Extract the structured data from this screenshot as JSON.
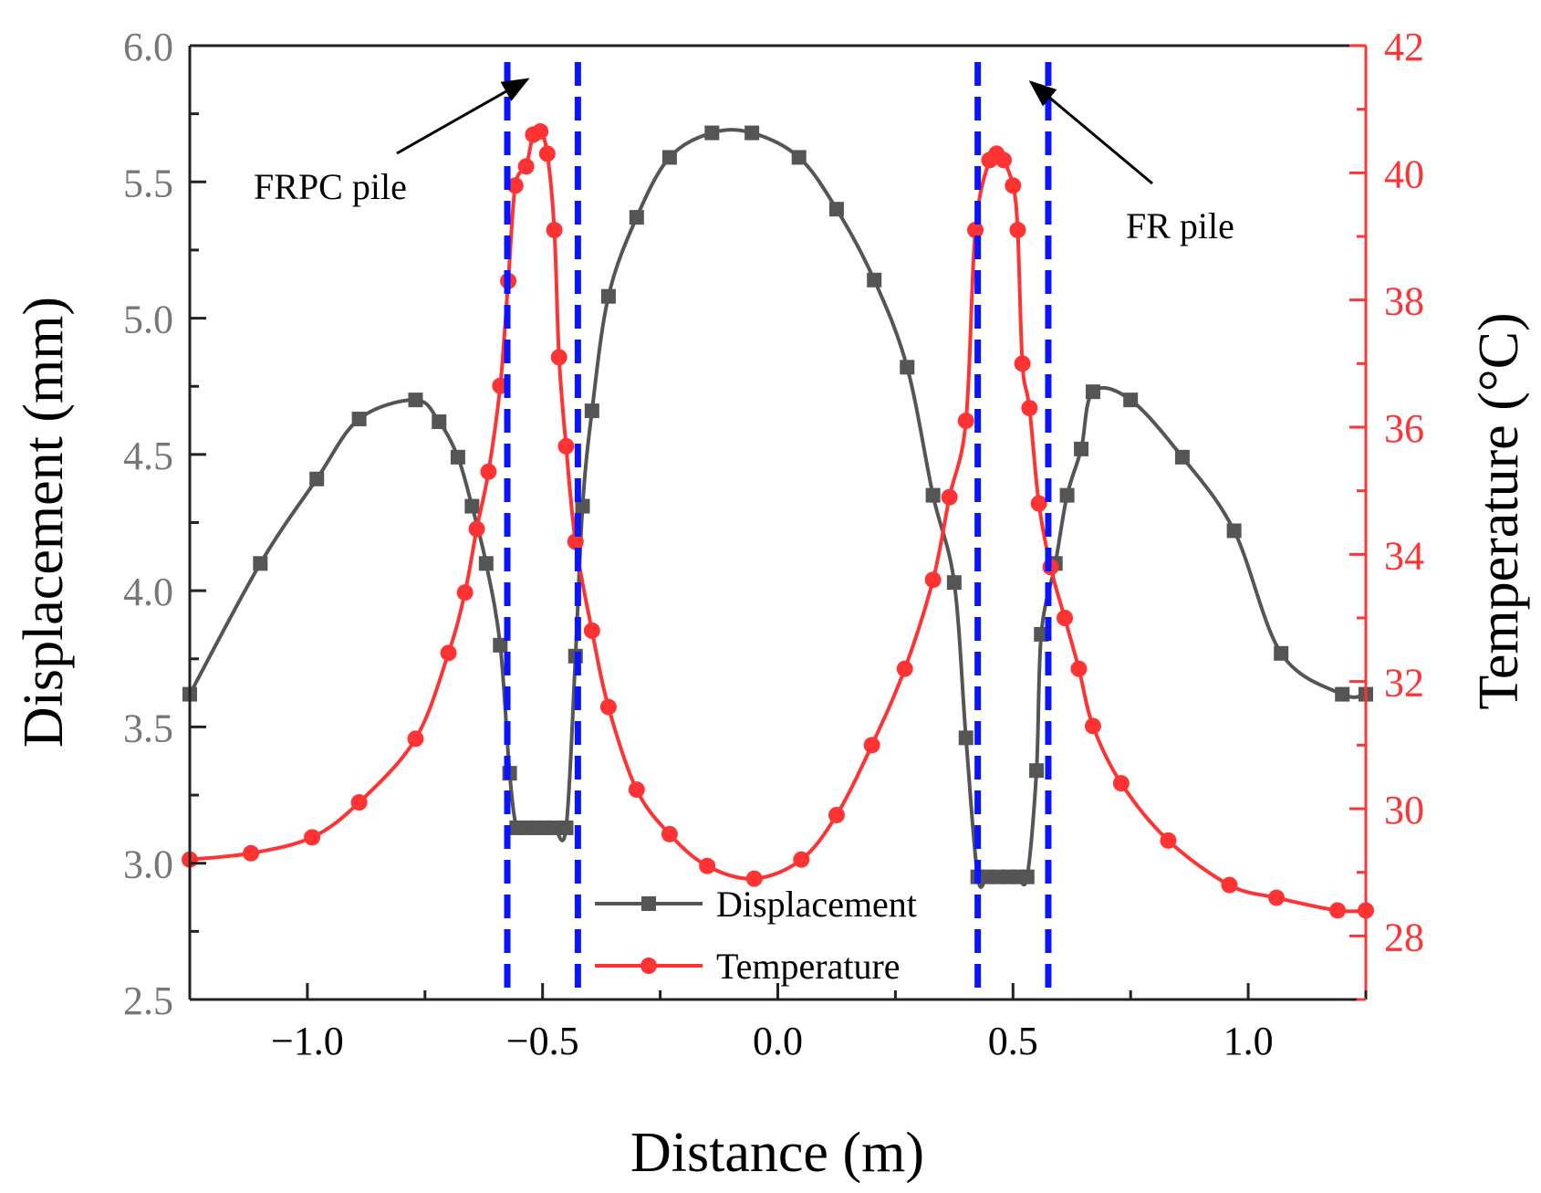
{
  "chart_data": {
    "type": "line",
    "xlabel": "Distance (m)",
    "ylabel": "Displacement (mm)",
    "ylabel_right": "Temperature (°C)",
    "xlim": [
      -1.25,
      1.25
    ],
    "ylim": [
      2.5,
      6.0
    ],
    "ylim_right": [
      27,
      42
    ],
    "x_ticks": [
      "−1.0",
      "−0.5",
      "0.0",
      "0.5",
      "1.0"
    ],
    "x_tick_values": [
      -1.0,
      -0.5,
      0.0,
      0.5,
      1.0
    ],
    "y_ticks": [
      "2.5",
      "3.0",
      "3.5",
      "4.0",
      "4.5",
      "5.0",
      "5.5",
      "6.0"
    ],
    "y_tick_values": [
      2.5,
      3.0,
      3.5,
      4.0,
      4.5,
      5.0,
      5.5,
      6.0
    ],
    "y_right_ticks": [
      "28",
      "30",
      "32",
      "34",
      "36",
      "38",
      "40",
      "42"
    ],
    "y_right_tick_values": [
      28,
      30,
      32,
      34,
      36,
      38,
      40,
      42
    ],
    "legend_position": "bottom-center",
    "colors": {
      "displacement": "#555555",
      "temperature": "#ff3333",
      "pile_lines": "#0a14ff",
      "left_axis": "#777777",
      "right_axis": "#ff3333"
    },
    "series": [
      {
        "name": "Displacement",
        "axis": "left",
        "marker": "square",
        "x": [
          -1.25,
          -1.1,
          -0.98,
          -0.89,
          -0.77,
          -0.72,
          -0.68,
          -0.65,
          -0.62,
          -0.59,
          -0.57,
          -0.555,
          -0.535,
          -0.515,
          -0.495,
          -0.475,
          -0.45,
          -0.43,
          -0.415,
          -0.395,
          -0.36,
          -0.3,
          -0.23,
          -0.14,
          -0.055,
          0.045,
          0.125,
          0.205,
          0.275,
          0.33,
          0.375,
          0.4,
          0.425,
          0.445,
          0.47,
          0.49,
          0.51,
          0.53,
          0.55,
          0.56,
          0.59,
          0.615,
          0.645,
          0.67,
          0.75,
          0.86,
          0.97,
          1.07,
          1.2,
          1.25
        ],
        "y": [
          3.62,
          4.1,
          4.41,
          4.63,
          4.7,
          4.62,
          4.49,
          4.31,
          4.1,
          3.8,
          3.33,
          3.13,
          3.13,
          3.13,
          3.13,
          3.13,
          3.13,
          3.76,
          4.31,
          4.66,
          5.08,
          5.37,
          5.59,
          5.68,
          5.68,
          5.59,
          5.4,
          5.14,
          4.82,
          4.35,
          4.03,
          3.46,
          2.95,
          2.95,
          2.95,
          2.95,
          2.95,
          2.95,
          3.34,
          3.84,
          4.1,
          4.35,
          4.52,
          4.73,
          4.7,
          4.49,
          4.22,
          3.77,
          3.62,
          3.62
        ]
      },
      {
        "name": "Temperature",
        "axis": "right",
        "marker": "circle",
        "x": [
          -1.25,
          -1.12,
          -0.99,
          -0.89,
          -0.77,
          -0.7,
          -0.665,
          -0.64,
          -0.615,
          -0.59,
          -0.573,
          -0.558,
          -0.535,
          -0.52,
          -0.505,
          -0.49,
          -0.475,
          -0.465,
          -0.45,
          -0.43,
          -0.395,
          -0.36,
          -0.3,
          -0.23,
          -0.15,
          -0.05,
          0.05,
          0.125,
          0.2,
          0.27,
          0.33,
          0.365,
          0.4,
          0.42,
          0.45,
          0.465,
          0.48,
          0.5,
          0.51,
          0.52,
          0.535,
          0.555,
          0.58,
          0.61,
          0.64,
          0.67,
          0.73,
          0.83,
          0.96,
          1.06,
          1.19,
          1.25
        ],
        "y": [
          29.2,
          29.3,
          29.55,
          30.1,
          31.1,
          32.45,
          33.4,
          34.4,
          35.3,
          36.65,
          38.3,
          39.8,
          40.1,
          40.6,
          40.65,
          40.3,
          39.1,
          37.1,
          35.7,
          34.2,
          32.8,
          31.6,
          30.3,
          29.6,
          29.1,
          28.9,
          29.2,
          29.9,
          31.0,
          32.2,
          33.6,
          34.9,
          36.1,
          39.1,
          40.2,
          40.3,
          40.2,
          39.8,
          39.1,
          37.0,
          36.3,
          34.8,
          33.8,
          33.0,
          32.2,
          31.3,
          30.4,
          29.5,
          28.8,
          28.6,
          28.4,
          28.4
        ]
      }
    ],
    "pile_boundaries": [
      -0.575,
      -0.425,
      0.425,
      0.575
    ],
    "annotations": [
      {
        "text": "FRPC pile"
      },
      {
        "text": "FR pile"
      }
    ]
  }
}
